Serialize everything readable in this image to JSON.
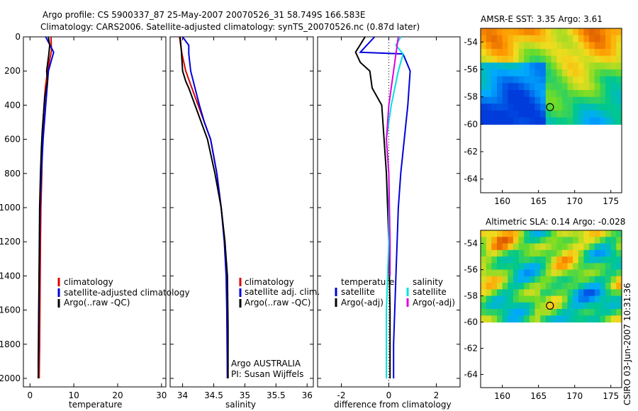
{
  "title": {
    "line1": "Argo profile: CS 5900337_87 25-May-2007 20070526_31 58.749S 166.583E",
    "line2": "Climatology: CARS2006. Satellite-adjusted climatology: synTS_20070526.nc (0.87d later)"
  },
  "side_text": "CSIRO 03-Jun-2007 10:31:36",
  "colors": {
    "red": "#dd0000",
    "blue": "#0000dd",
    "black": "#000000",
    "cyan": "#00e0e0",
    "magenta": "#e000e0"
  },
  "chart_data": [
    {
      "type": "line",
      "panel": "temperature",
      "xlabel": "temperature",
      "xlim": [
        -1.5,
        31
      ],
      "ylim": [
        2050,
        0
      ],
      "xticks": [
        0,
        10,
        20,
        30
      ],
      "yticks": [
        0,
        200,
        400,
        600,
        800,
        1000,
        1200,
        1400,
        1600,
        1800,
        2000
      ],
      "legend": [
        "climatology",
        "satellite-adjusted climatology",
        "Argo(..raw -QC)"
      ],
      "series": [
        {
          "name": "climatology",
          "color": "red",
          "x": [
            4.8,
            4.9,
            4.0,
            3.5,
            3.2,
            3.0,
            2.8,
            2.7,
            2.5,
            2.4,
            2.3,
            2.2,
            2.1
          ],
          "y": [
            0,
            80,
            200,
            300,
            400,
            500,
            600,
            800,
            1000,
            1200,
            1500,
            1800,
            2000
          ]
        },
        {
          "name": "satellite-adjusted climatology",
          "color": "blue",
          "x": [
            3.6,
            5.4,
            4.2,
            3.6,
            3.0,
            2.6,
            2.3,
            2.1,
            2.0,
            1.9
          ],
          "y": [
            0,
            90,
            200,
            400,
            600,
            800,
            1000,
            1400,
            1800,
            2000
          ]
        },
        {
          "name": "Argo(..raw -QC)",
          "color": "black",
          "x": [
            4.2,
            4.5,
            4.3,
            3.8,
            4.0,
            3.4,
            3.1,
            2.8,
            2.6,
            2.4,
            2.2,
            2.1,
            2.0,
            1.9,
            1.9
          ],
          "y": [
            0,
            50,
            100,
            200,
            260,
            350,
            450,
            550,
            650,
            800,
            1000,
            1300,
            1600,
            1900,
            2000
          ]
        }
      ]
    },
    {
      "type": "line",
      "panel": "salinity",
      "xlabel": "salinity",
      "xlim": [
        33.8,
        36.1
      ],
      "ylim": [
        2050,
        0
      ],
      "xticks": [
        34,
        34.5,
        35,
        35.5,
        36
      ],
      "legend": [
        "climatology",
        "satellite adj. clim.",
        "Argo(..raw -QC)"
      ],
      "annotation": [
        "Argo AUSTRALIA",
        "PI: Susan Wijffels"
      ],
      "series": [
        {
          "name": "climatology",
          "color": "red",
          "x": [
            33.95,
            33.99,
            34.05,
            34.15,
            34.25,
            34.35,
            34.45,
            34.55,
            34.62,
            34.68,
            34.71,
            34.72,
            34.72
          ],
          "y": [
            0,
            100,
            200,
            300,
            400,
            500,
            600,
            800,
            1000,
            1200,
            1400,
            1600,
            2000
          ]
        },
        {
          "name": "satellite adj. clim.",
          "color": "blue",
          "x": [
            34.0,
            34.1,
            34.1,
            34.13,
            34.2,
            34.27,
            34.35,
            34.45,
            34.55,
            34.62,
            34.67,
            34.7,
            34.71,
            34.72
          ],
          "y": [
            0,
            50,
            100,
            200,
            300,
            400,
            500,
            600,
            800,
            1000,
            1200,
            1400,
            1600,
            2000
          ]
        },
        {
          "name": "Argo(..raw -QC)",
          "color": "black",
          "x": [
            33.96,
            33.98,
            34.0,
            34.05,
            34.1,
            34.2,
            34.3,
            34.4,
            34.52,
            34.62,
            34.68,
            34.72,
            34.73,
            34.73
          ],
          "y": [
            0,
            80,
            200,
            260,
            300,
            400,
            500,
            600,
            800,
            1000,
            1200,
            1400,
            1700,
            2000
          ]
        }
      ]
    },
    {
      "type": "line",
      "panel": "difference",
      "xlabel": "difference from climatology",
      "xlim": [
        -3,
        3
      ],
      "ylim": [
        2050,
        0
      ],
      "xticks": [
        -2,
        0,
        2
      ],
      "legend_left_title": "temperature",
      "legend_right_title": "salinity",
      "legend": [
        "satellite",
        "Argo(-adj)",
        "satellite",
        "Argo(-adj)"
      ],
      "series": [
        {
          "name": "temperature satellite",
          "color": "blue",
          "x": [
            -0.6,
            -1.2,
            0.6,
            0.9,
            0.8,
            0.5,
            0.4,
            0.3,
            0.2,
            0.2
          ],
          "y": [
            0,
            90,
            100,
            200,
            400,
            800,
            1000,
            1400,
            1800,
            2000
          ]
        },
        {
          "name": "temperature Argo(-adj)",
          "color": "black",
          "x": [
            -1.0,
            -1.4,
            -1.2,
            -0.8,
            -0.7,
            -0.3,
            -0.2,
            -0.1,
            0.0,
            0.05,
            0.05
          ],
          "y": [
            0,
            90,
            150,
            200,
            300,
            400,
            600,
            800,
            1200,
            1600,
            2000
          ]
        },
        {
          "name": "salinity satellite",
          "color": "cyan",
          "x": [
            0.5,
            0.3,
            0.6,
            0.4,
            0.1,
            -0.1,
            0.0,
            0.0,
            -0.1,
            -0.1
          ],
          "y": [
            0,
            50,
            100,
            200,
            400,
            600,
            800,
            1200,
            1600,
            2000
          ]
        },
        {
          "name": "salinity Argo(-adj)",
          "color": "magenta",
          "x": [
            0.4,
            0.3,
            0.2,
            0.0,
            -0.1,
            0.0,
            0.05,
            0.05
          ],
          "y": [
            0,
            100,
            200,
            400,
            600,
            800,
            1200,
            1400
          ]
        }
      ]
    },
    {
      "type": "heatmap",
      "panel": "sst-map",
      "title": "AMSR-E SST: 3.35 Argo: 3.61",
      "xlim": [
        157,
        176.5
      ],
      "ylim": [
        -65,
        -53
      ],
      "xticks": [
        160,
        165,
        170,
        175
      ],
      "yticks": [
        -54,
        -56,
        -58,
        -60,
        -62,
        -64
      ],
      "data_extent_lat": [
        -60,
        -53
      ],
      "marker": {
        "lon": 166.583,
        "lat": -58.749
      }
    },
    {
      "type": "heatmap",
      "panel": "sla-map",
      "title": "Altimetric SLA: 0.14 Argo: -0.028",
      "xlim": [
        157,
        176.5
      ],
      "ylim": [
        -65,
        -53
      ],
      "xticks": [
        160,
        165,
        170,
        175
      ],
      "yticks": [
        -54,
        -56,
        -58,
        -60,
        -62,
        -64
      ],
      "data_extent_lat": [
        -60,
        -53
      ],
      "marker": {
        "lon": 166.583,
        "lat": -58.749
      }
    }
  ]
}
